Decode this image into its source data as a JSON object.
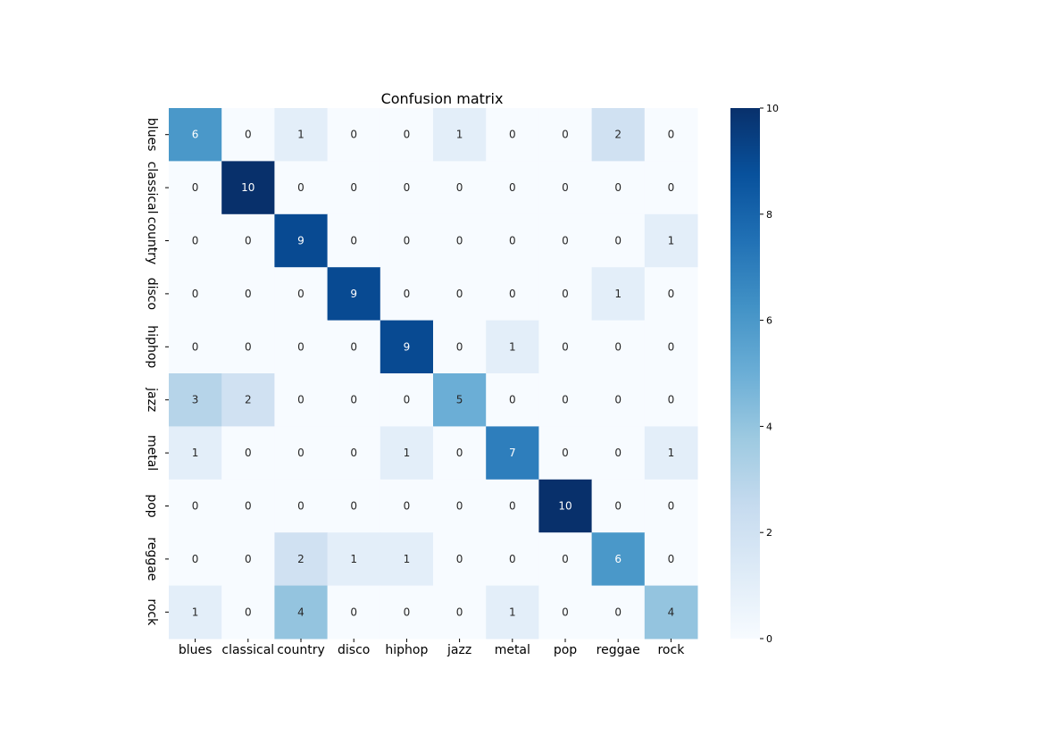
{
  "chart_data": {
    "type": "heatmap",
    "title": "Confusion matrix",
    "xlabel": "",
    "ylabel": "",
    "x_labels": [
      "blues",
      "classical",
      "country",
      "disco",
      "hiphop",
      "jazz",
      "metal",
      "pop",
      "reggae",
      "rock"
    ],
    "y_labels": [
      "blues",
      "classical",
      "country",
      "disco",
      "hiphop",
      "jazz",
      "metal",
      "pop",
      "reggae",
      "rock"
    ],
    "matrix": [
      [
        6,
        0,
        1,
        0,
        0,
        1,
        0,
        0,
        2,
        0
      ],
      [
        0,
        10,
        0,
        0,
        0,
        0,
        0,
        0,
        0,
        0
      ],
      [
        0,
        0,
        9,
        0,
        0,
        0,
        0,
        0,
        0,
        1
      ],
      [
        0,
        0,
        0,
        9,
        0,
        0,
        0,
        0,
        1,
        0
      ],
      [
        0,
        0,
        0,
        0,
        9,
        0,
        1,
        0,
        0,
        0
      ],
      [
        3,
        2,
        0,
        0,
        0,
        5,
        0,
        0,
        0,
        0
      ],
      [
        1,
        0,
        0,
        0,
        1,
        0,
        7,
        0,
        0,
        1
      ],
      [
        0,
        0,
        0,
        0,
        0,
        0,
        0,
        10,
        0,
        0
      ],
      [
        0,
        0,
        2,
        1,
        1,
        0,
        0,
        0,
        6,
        0
      ],
      [
        1,
        0,
        4,
        0,
        0,
        0,
        1,
        0,
        0,
        4
      ]
    ],
    "colorbar": {
      "min": 0,
      "max": 10,
      "ticks": [
        0,
        2,
        4,
        6,
        8,
        10
      ],
      "colormap": "Blues"
    }
  }
}
